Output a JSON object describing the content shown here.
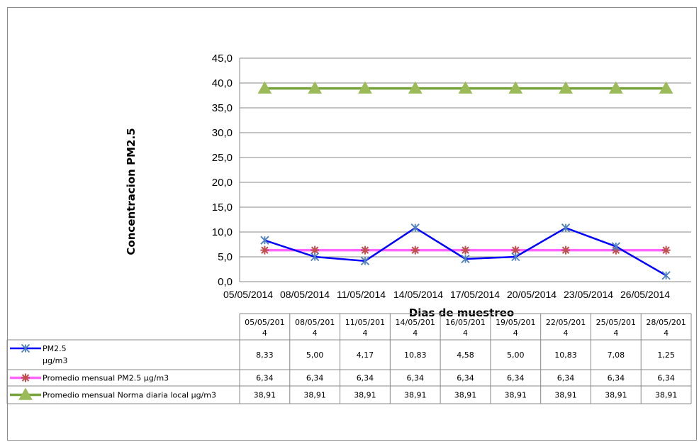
{
  "chart_data": {
    "type": "line",
    "xlabel": "Dias de muestreo",
    "ylabel": "Concentracion  PM2.5",
    "ylim": [
      0,
      45
    ],
    "y_ticks": [
      "0,0",
      "5,0",
      "10,0",
      "15,0",
      "20,0",
      "25,0",
      "30,0",
      "35,0",
      "40,0",
      "45,0"
    ],
    "x_axis_labels": [
      "05/05/2014",
      "08/05/2014",
      "11/05/2014",
      "14/05/2014",
      "17/05/2014",
      "20/05/2014",
      "23/05/2014",
      "26/05/2014"
    ],
    "categories": [
      "05/05/2014",
      "08/05/2014",
      "11/05/2014",
      "14/05/2014",
      "16/05/2014",
      "19/05/2014",
      "22/05/2014",
      "25/05/2014",
      "28/05/2014"
    ],
    "table_headers": [
      [
        "05/05/201",
        "4"
      ],
      [
        "08/05/201",
        "4"
      ],
      [
        "11/05/201",
        "4"
      ],
      [
        "14/05/201",
        "4"
      ],
      [
        "16/05/201",
        "4"
      ],
      [
        "19/05/201",
        "4"
      ],
      [
        "22/05/201",
        "4"
      ],
      [
        "25/05/201",
        "4"
      ],
      [
        "28/05/201",
        "4"
      ]
    ],
    "legend": "bottom-table",
    "grid": true,
    "series": [
      {
        "name": "PM2.5 µg/m3",
        "name_lines": [
          "PM2.5",
          "µg/m3"
        ],
        "color": "#0000ff",
        "marker": "asterisk",
        "marker_color": "#4f81bd",
        "values": [
          8.33,
          5.0,
          4.17,
          10.83,
          4.58,
          5.0,
          10.83,
          7.08,
          1.25
        ],
        "labels": [
          "8,33",
          "5,00",
          "4,17",
          "10,83",
          "4,58",
          "5,00",
          "10,83",
          "7,08",
          "1,25"
        ]
      },
      {
        "name": "Promedio mensual PM2.5 µg/m3",
        "name_lines": [
          "Promedio mensual PM2.5 µg/m3"
        ],
        "color": "#ff66ff",
        "marker": "star",
        "marker_color": "#c0504d",
        "values": [
          6.34,
          6.34,
          6.34,
          6.34,
          6.34,
          6.34,
          6.34,
          6.34,
          6.34
        ],
        "labels": [
          "6,34",
          "6,34",
          "6,34",
          "6,34",
          "6,34",
          "6,34",
          "6,34",
          "6,34",
          "6,34"
        ]
      },
      {
        "name": "Promedio mensual Norma diaria local µg/m3",
        "name_lines": [
          "Promedio mensual Norma diaria local µg/m3"
        ],
        "color": "#77a33c",
        "marker": "triangle",
        "marker_color": "#9bbb59",
        "values": [
          38.91,
          38.91,
          38.91,
          38.91,
          38.91,
          38.91,
          38.91,
          38.91,
          38.91
        ],
        "labels": [
          "38,91",
          "38,91",
          "38,91",
          "38,91",
          "38,91",
          "38,91",
          "38,91",
          "38,91",
          "38,91"
        ]
      }
    ]
  }
}
